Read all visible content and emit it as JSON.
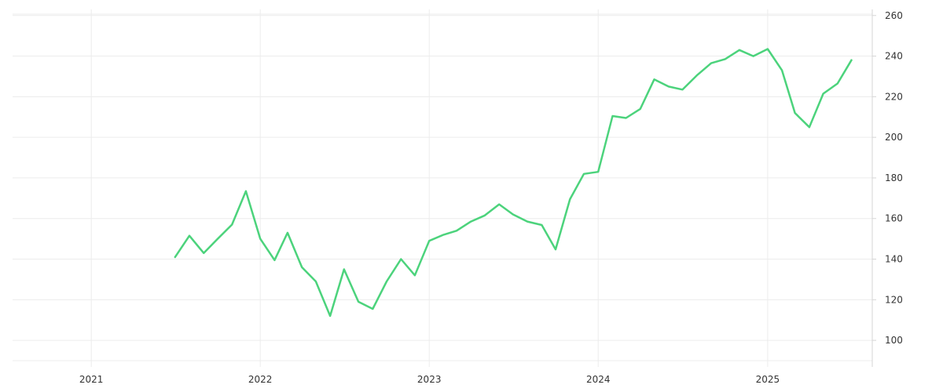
{
  "chart_data": {
    "type": "line",
    "x_tick_labels": [
      "2021",
      "2022",
      "2023",
      "2024",
      "2025"
    ],
    "y_tick_labels": [
      "100",
      "120",
      "140",
      "160",
      "180",
      "200",
      "220",
      "240",
      "260"
    ],
    "xlim": [
      "2020-07-15",
      "2025-08-15"
    ],
    "ylim": [
      90,
      263
    ],
    "grid": true,
    "y_axis_position": "right",
    "colors": {
      "line": "#4cd37c",
      "grid": "#ececec",
      "axis": "#d6d6d6"
    },
    "series": [
      {
        "x": [
          "2021-07-01",
          "2021-08-01",
          "2021-09-01",
          "2021-10-01",
          "2021-11-01",
          "2021-12-01",
          "2022-01-01",
          "2022-02-01",
          "2022-03-01",
          "2022-04-01",
          "2022-05-01",
          "2022-06-01",
          "2022-07-01",
          "2022-08-01",
          "2022-09-01",
          "2022-10-01",
          "2022-11-01",
          "2022-12-01",
          "2023-01-01",
          "2023-02-01",
          "2023-03-01",
          "2023-04-01",
          "2023-05-01",
          "2023-06-01",
          "2023-07-01",
          "2023-08-01",
          "2023-09-01",
          "2023-10-01",
          "2023-11-01",
          "2023-12-01",
          "2024-01-01",
          "2024-02-01",
          "2024-03-01",
          "2024-04-01",
          "2024-05-01",
          "2024-06-01",
          "2024-07-01",
          "2024-08-01",
          "2024-09-01",
          "2024-10-01",
          "2024-11-01",
          "2024-12-01",
          "2025-01-01",
          "2025-02-01",
          "2025-03-01",
          "2025-04-01",
          "2025-05-01",
          "2025-06-01",
          "2025-07-01"
        ],
        "values": [
          141,
          151.5,
          143,
          150,
          157,
          173.5,
          150,
          139.5,
          153,
          136,
          129,
          112,
          135,
          119,
          115.5,
          129,
          140,
          132,
          149,
          152,
          154,
          158.5,
          161.5,
          167,
          162,
          158.5,
          156.8,
          144.8,
          169.5,
          182,
          183,
          210.5,
          209.5,
          214,
          228.5,
          225,
          223.5,
          230.5,
          236.5,
          238.5,
          243,
          240,
          243.5,
          233,
          212,
          205,
          221.5,
          226.5,
          238
        ]
      }
    ]
  }
}
